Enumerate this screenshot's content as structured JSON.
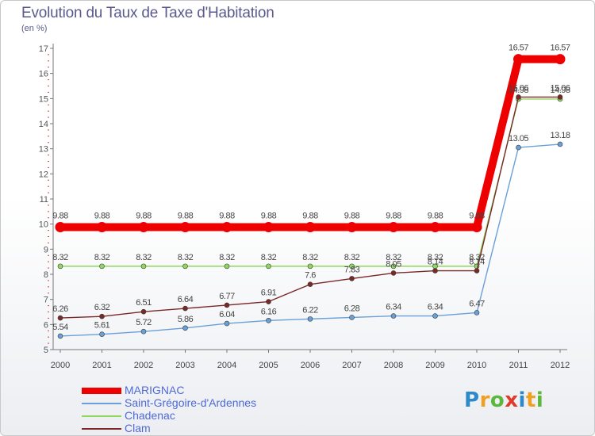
{
  "chart_data": {
    "type": "line",
    "title": "Evolution du Taux de Taxe d'Habitation",
    "ylabel": "(en %)",
    "xlabel": "",
    "x": [
      "2000",
      "2001",
      "2002",
      "2003",
      "2004",
      "2005",
      "2006",
      "2007",
      "2008",
      "2009",
      "2010",
      "2011",
      "2012"
    ],
    "ylim": [
      5,
      17
    ],
    "yticks": [
      "5",
      "6",
      "7",
      "8",
      "9",
      "10",
      "11",
      "12",
      "13",
      "14",
      "15",
      "16",
      "17"
    ],
    "series": [
      {
        "name": "MARIGNAC",
        "color": "#ee0000",
        "values": [
          9.88,
          9.88,
          9.88,
          9.88,
          9.88,
          9.88,
          9.88,
          9.88,
          9.88,
          9.88,
          9.88,
          16.57,
          16.57
        ],
        "labels": [
          "9.88",
          "9.88",
          "9.88",
          "9.88",
          "9.88",
          "9.88",
          "9.88",
          "9.88",
          "9.88",
          "9.88",
          "9.88",
          "16.57",
          "16.57"
        ]
      },
      {
        "name": "Saint-Grégoire-d'Ardennes",
        "color": "#6aa0d8",
        "values": [
          5.54,
          5.61,
          5.72,
          5.86,
          6.04,
          6.16,
          6.22,
          6.28,
          6.34,
          6.34,
          6.47,
          13.05,
          13.18
        ],
        "labels": [
          "5.54",
          "5.61",
          "5.72",
          "5.86",
          "6.04",
          "6.16",
          "6.22",
          "6.28",
          "6.34",
          "6.34",
          "6.47",
          "13.05",
          "13.18"
        ]
      },
      {
        "name": "Chadenac",
        "color": "#8fd860",
        "values": [
          8.32,
          8.32,
          8.32,
          8.32,
          8.32,
          8.32,
          8.32,
          8.32,
          8.32,
          8.32,
          8.32,
          14.98,
          14.98
        ],
        "labels": [
          "8.32",
          "8.32",
          "8.32",
          "8.32",
          "8.32",
          "8.32",
          "8.32",
          "8.32",
          "8.32",
          "8.32",
          "8.32",
          "14.98",
          "14.98"
        ]
      },
      {
        "name": "Clam",
        "color": "#7a2828",
        "values": [
          6.26,
          6.32,
          6.51,
          6.64,
          6.77,
          6.91,
          7.6,
          7.83,
          8.05,
          8.14,
          8.14,
          15.06,
          15.06
        ],
        "labels": [
          "6.26",
          "6.32",
          "6.51",
          "6.64",
          "6.77",
          "6.91",
          "7.6",
          "7.83",
          "8.05",
          "8.14",
          "8.14",
          "15.06",
          "15.06"
        ]
      }
    ]
  },
  "logo": {
    "letters": [
      {
        "ch": "P",
        "color": "#2d89c8"
      },
      {
        "ch": "r",
        "color": "#f0a020"
      },
      {
        "ch": "o",
        "color": "#5cb83c"
      },
      {
        "ch": "x",
        "color": "#e03a2a"
      },
      {
        "ch": "i",
        "color": "#2d89c8"
      },
      {
        "ch": "t",
        "color": "#f0a020"
      },
      {
        "ch": "i",
        "color": "#5cb83c"
      }
    ]
  }
}
